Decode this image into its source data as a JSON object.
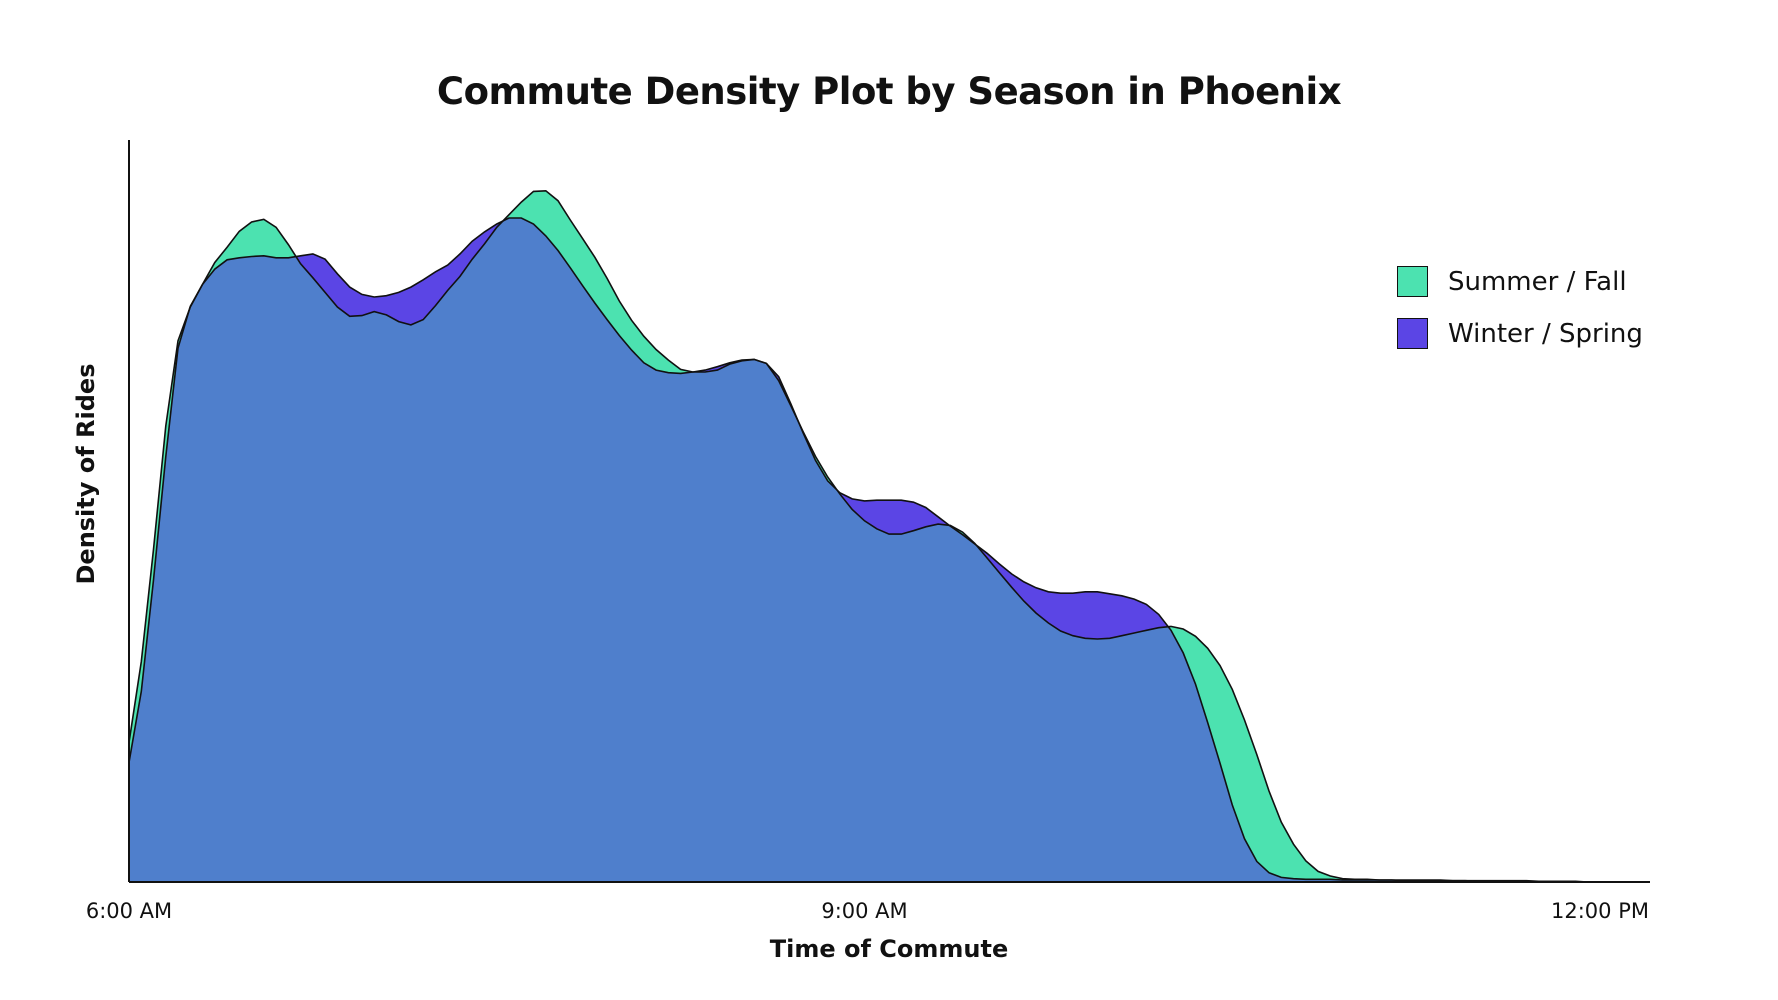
{
  "chart_data": {
    "type": "area",
    "title": "Commute Density Plot by Season in Phoenix",
    "xlabel": "Time of Commute",
    "ylabel": "Density of Rides",
    "x_ticks": [
      "6:00 AM",
      "9:00 AM",
      "12:00 PM"
    ],
    "xlim": [
      6.0,
      12.2
    ],
    "ylim": [
      0,
      1.0
    ],
    "grid": false,
    "legend_position": "top-right",
    "x": [
      6.0,
      6.05,
      6.1,
      6.15,
      6.2,
      6.25,
      6.3,
      6.35,
      6.4,
      6.45,
      6.5,
      6.55,
      6.6,
      6.65,
      6.7,
      6.75,
      6.8,
      6.85,
      6.9,
      6.95,
      7.0,
      7.05,
      7.1,
      7.15,
      7.2,
      7.25,
      7.3,
      7.35,
      7.4,
      7.45,
      7.5,
      7.55,
      7.6,
      7.65,
      7.7,
      7.75,
      7.8,
      7.85,
      7.9,
      7.95,
      8.0,
      8.05,
      8.1,
      8.15,
      8.2,
      8.25,
      8.3,
      8.35,
      8.4,
      8.45,
      8.5,
      8.55,
      8.6,
      8.65,
      8.7,
      8.75,
      8.8,
      8.85,
      8.9,
      8.95,
      9.0,
      9.05,
      9.1,
      9.15,
      9.2,
      9.25,
      9.3,
      9.35,
      9.4,
      9.45,
      9.5,
      9.55,
      9.6,
      9.65,
      9.7,
      9.75,
      9.8,
      9.85,
      9.9,
      9.95,
      10.0,
      10.05,
      10.1,
      10.15,
      10.2,
      10.25,
      10.3,
      10.35,
      10.4,
      10.45,
      10.5,
      10.55,
      10.6,
      10.65,
      10.7,
      10.75,
      10.8,
      10.85,
      10.9,
      10.95,
      11.0,
      11.05,
      11.1,
      11.15,
      11.2,
      11.25,
      11.3,
      11.35,
      11.4,
      11.45,
      11.5,
      11.55,
      11.6,
      11.65,
      11.7,
      11.75,
      11.8,
      11.85,
      11.9,
      11.95,
      12.0,
      12.05,
      12.1,
      12.15,
      12.2
    ],
    "series": [
      {
        "name": "Summer / Fall",
        "color": "#4ce2b0",
        "values": [
          0.21,
          0.332,
          0.501,
          0.687,
          0.815,
          0.866,
          0.9,
          0.933,
          0.956,
          0.98,
          0.994,
          0.998,
          0.986,
          0.96,
          0.931,
          0.91,
          0.888,
          0.866,
          0.852,
          0.853,
          0.859,
          0.854,
          0.844,
          0.839,
          0.847,
          0.868,
          0.891,
          0.912,
          0.938,
          0.961,
          0.986,
          1.005,
          1.024,
          1.04,
          1.041,
          1.026,
          0.997,
          0.969,
          0.941,
          0.909,
          0.875,
          0.846,
          0.822,
          0.802,
          0.786,
          0.772,
          0.768,
          0.768,
          0.771,
          0.78,
          0.785,
          0.787,
          0.781,
          0.755,
          0.717,
          0.678,
          0.641,
          0.61,
          0.584,
          0.561,
          0.544,
          0.532,
          0.524,
          0.524,
          0.529,
          0.535,
          0.539,
          0.537,
          0.527,
          0.51,
          0.488,
          0.466,
          0.444,
          0.423,
          0.405,
          0.39,
          0.378,
          0.371,
          0.367,
          0.366,
          0.367,
          0.371,
          0.375,
          0.379,
          0.383,
          0.385,
          0.381,
          0.37,
          0.352,
          0.326,
          0.29,
          0.244,
          0.192,
          0.137,
          0.09,
          0.057,
          0.032,
          0.016,
          0.009,
          0.005,
          0.004,
          0.004,
          0.003,
          0.003,
          0.003,
          0.003,
          0.003,
          0.003,
          0.002,
          0.002,
          0.002,
          0.002,
          0.002,
          0.002,
          0.002,
          0.001,
          0.001,
          0.001,
          0.001,
          0.0,
          0.0,
          0.0,
          0.0,
          0.0,
          0.0
        ]
      },
      {
        "name": "Winter / Spring",
        "color": "#5b45e5",
        "values": [
          0.18,
          0.287,
          0.455,
          0.641,
          0.804,
          0.867,
          0.9,
          0.923,
          0.937,
          0.94,
          0.942,
          0.943,
          0.94,
          0.94,
          0.943,
          0.946,
          0.938,
          0.916,
          0.896,
          0.885,
          0.881,
          0.883,
          0.888,
          0.896,
          0.907,
          0.919,
          0.929,
          0.946,
          0.965,
          0.979,
          0.991,
          1.0,
          1.0,
          0.991,
          0.973,
          0.951,
          0.925,
          0.898,
          0.872,
          0.847,
          0.823,
          0.801,
          0.782,
          0.771,
          0.767,
          0.766,
          0.768,
          0.771,
          0.776,
          0.782,
          0.786,
          0.787,
          0.781,
          0.761,
          0.72,
          0.676,
          0.635,
          0.604,
          0.586,
          0.577,
          0.574,
          0.575,
          0.575,
          0.575,
          0.572,
          0.564,
          0.55,
          0.536,
          0.523,
          0.509,
          0.495,
          0.479,
          0.464,
          0.452,
          0.443,
          0.437,
          0.435,
          0.435,
          0.437,
          0.437,
          0.434,
          0.431,
          0.426,
          0.418,
          0.403,
          0.379,
          0.345,
          0.298,
          0.24,
          0.179,
          0.116,
          0.065,
          0.031,
          0.014,
          0.007,
          0.005,
          0.004,
          0.004,
          0.004,
          0.003,
          0.003,
          0.003,
          0.003,
          0.003,
          0.002,
          0.002,
          0.002,
          0.002,
          0.002,
          0.002,
          0.001,
          0.001,
          0.001,
          0.001,
          0.001,
          0.001,
          0.0,
          0.0,
          0.0,
          0.0,
          0.0,
          0.0,
          0.0,
          0.0,
          0.0
        ]
      }
    ],
    "overlap_color": "#4f7fcc"
  }
}
